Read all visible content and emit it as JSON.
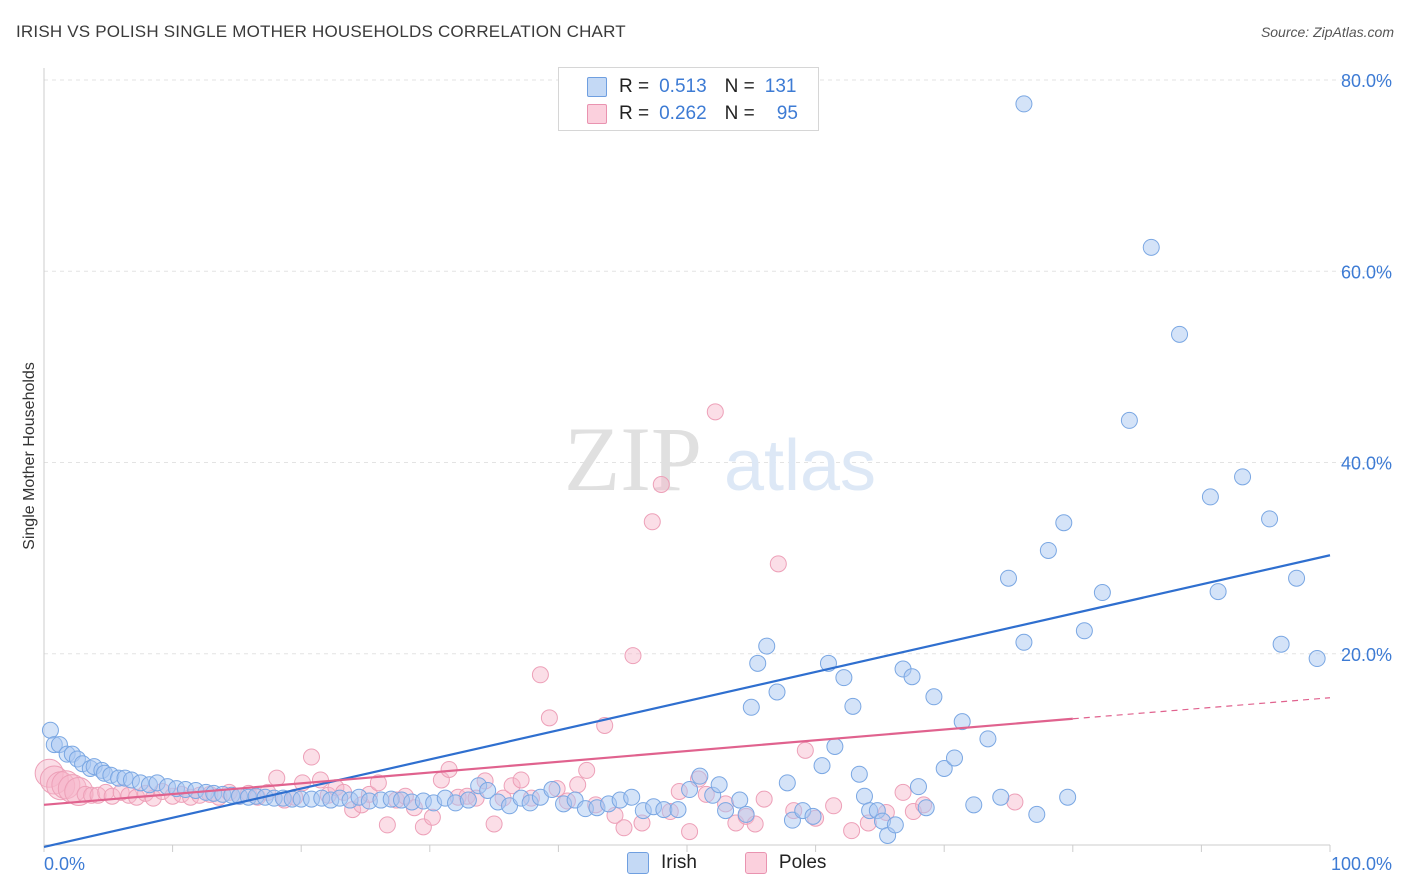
{
  "title": "IRISH VS POLISH SINGLE MOTHER HOUSEHOLDS CORRELATION CHART",
  "source": "Source: ZipAtlas.com",
  "watermark": {
    "zip": "ZIP",
    "atlas": "atlas"
  },
  "legend": {
    "rows": [
      {
        "r_label": "R =",
        "r_value": "0.513",
        "n_label": "N =",
        "n_value": "131",
        "color": "#a9c8f1"
      },
      {
        "r_label": "R =",
        "r_value": "0.262",
        "n_label": "N =",
        "n_value": "95",
        "color": "#f7b6c9"
      }
    ],
    "bottom": [
      {
        "label": "Irish",
        "color": "#a9c8f1"
      },
      {
        "label": "Poles",
        "color": "#f7b6c9"
      }
    ]
  },
  "chart_data": {
    "type": "scatter",
    "title": "IRISH VS POLISH SINGLE MOTHER HOUSEHOLDS CORRELATION CHART",
    "xlabel": "",
    "ylabel": "Single Mother Households",
    "xlim": [
      0,
      100
    ],
    "ylim": [
      0,
      80
    ],
    "x_tick_labels": [
      "0.0%",
      "100.0%"
    ],
    "y_ticks": [
      20,
      40,
      60,
      80
    ],
    "y_tick_labels": [
      "20.0%",
      "40.0%",
      "60.0%",
      "80.0%"
    ],
    "grid": true,
    "colors": {
      "irish": "#a9c8f1",
      "irish_line": "#2f6fcf",
      "poles": "#f7b6c9",
      "poles_line": "#e0628e",
      "tick_text": "#3d7bd4"
    },
    "series": [
      {
        "name": "Irish",
        "r": 0.513,
        "n": 131,
        "trend": {
          "x0": 0,
          "y0": -0.2,
          "x1": 100,
          "y1": 30.3
        },
        "points": [
          [
            0.5,
            12
          ],
          [
            0.8,
            10.5
          ],
          [
            1.2,
            10.5
          ],
          [
            1.8,
            9.5
          ],
          [
            2.2,
            9.5
          ],
          [
            2.6,
            9
          ],
          [
            3.0,
            8.5
          ],
          [
            3.6,
            8
          ],
          [
            3.9,
            8.2
          ],
          [
            4.5,
            7.8
          ],
          [
            4.7,
            7.5
          ],
          [
            5.2,
            7.3
          ],
          [
            5.8,
            7
          ],
          [
            6.3,
            7
          ],
          [
            6.8,
            6.8
          ],
          [
            7.5,
            6.5
          ],
          [
            8.2,
            6.3
          ],
          [
            8.8,
            6.5
          ],
          [
            9.6,
            6.1
          ],
          [
            10.3,
            5.9
          ],
          [
            11,
            5.8
          ],
          [
            11.8,
            5.7
          ],
          [
            12.6,
            5.5
          ],
          [
            13.2,
            5.4
          ],
          [
            13.9,
            5.3
          ],
          [
            14.6,
            5.2
          ],
          [
            15.2,
            5.1
          ],
          [
            15.9,
            5.0
          ],
          [
            16.5,
            5.1
          ],
          [
            17.2,
            5.0
          ],
          [
            17.9,
            4.9
          ],
          [
            18.6,
            4.9
          ],
          [
            19.3,
            4.8
          ],
          [
            20,
            4.8
          ],
          [
            20.8,
            4.8
          ],
          [
            21.6,
            4.9
          ],
          [
            22.3,
            4.7
          ],
          [
            23,
            4.9
          ],
          [
            23.8,
            4.7
          ],
          [
            24.5,
            5.0
          ],
          [
            25.3,
            4.6
          ],
          [
            26.2,
            4.7
          ],
          [
            27.0,
            4.8
          ],
          [
            27.8,
            4.7
          ],
          [
            28.6,
            4.5
          ],
          [
            29.5,
            4.6
          ],
          [
            30.3,
            4.4
          ],
          [
            31.2,
            4.9
          ],
          [
            32.0,
            4.4
          ],
          [
            33.0,
            4.7
          ],
          [
            33.8,
            6.2
          ],
          [
            34.5,
            5.7
          ],
          [
            35.3,
            4.5
          ],
          [
            36.2,
            4.1
          ],
          [
            37.1,
            4.9
          ],
          [
            37.8,
            4.4
          ],
          [
            38.6,
            5.0
          ],
          [
            39.5,
            5.8
          ],
          [
            40.4,
            4.3
          ],
          [
            41.3,
            4.7
          ],
          [
            42.1,
            3.8
          ],
          [
            43.0,
            3.9
          ],
          [
            43.9,
            4.3
          ],
          [
            44.8,
            4.7
          ],
          [
            45.7,
            5.0
          ],
          [
            46.6,
            3.6
          ],
          [
            47.4,
            4.0
          ],
          [
            48.2,
            3.7
          ],
          [
            49.3,
            3.7
          ],
          [
            50.2,
            5.8
          ],
          [
            51.0,
            7.2
          ],
          [
            52.0,
            5.2
          ],
          [
            52.5,
            6.3
          ],
          [
            53.0,
            3.6
          ],
          [
            54.1,
            4.7
          ],
          [
            54.6,
            3.2
          ],
          [
            55.0,
            14.4
          ],
          [
            55.5,
            19.0
          ],
          [
            56.2,
            20.8
          ],
          [
            57.0,
            16.0
          ],
          [
            57.8,
            6.5
          ],
          [
            58.2,
            2.6
          ],
          [
            59.0,
            3.6
          ],
          [
            59.8,
            3.0
          ],
          [
            60.5,
            8.3
          ],
          [
            61.0,
            19.0
          ],
          [
            61.5,
            10.3
          ],
          [
            62.2,
            17.5
          ],
          [
            62.9,
            14.5
          ],
          [
            63.4,
            7.4
          ],
          [
            63.8,
            5.1
          ],
          [
            64.2,
            3.6
          ],
          [
            64.8,
            3.6
          ],
          [
            65.2,
            2.5
          ],
          [
            65.6,
            1.0
          ],
          [
            66.2,
            2.1
          ],
          [
            66.8,
            18.4
          ],
          [
            67.5,
            17.6
          ],
          [
            68.0,
            6.1
          ],
          [
            68.6,
            3.9
          ],
          [
            69.2,
            15.5
          ],
          [
            70.0,
            8.0
          ],
          [
            70.8,
            9.1
          ],
          [
            71.4,
            12.9
          ],
          [
            72.3,
            4.2
          ],
          [
            73.4,
            11.1
          ],
          [
            74.4,
            5.0
          ],
          [
            75.0,
            27.9
          ],
          [
            76.2,
            21.2
          ],
          [
            77.2,
            3.2
          ],
          [
            78.1,
            30.8
          ],
          [
            79.3,
            33.7
          ],
          [
            80.9,
            22.4
          ],
          [
            82.3,
            26.4
          ],
          [
            84.4,
            44.4
          ],
          [
            86.1,
            62.5
          ],
          [
            88.3,
            53.4
          ],
          [
            90.7,
            36.4
          ],
          [
            93.2,
            38.5
          ],
          [
            95.3,
            34.1
          ],
          [
            96.2,
            21.0
          ],
          [
            97.4,
            27.9
          ],
          [
            99.0,
            19.5
          ],
          [
            91.3,
            26.5
          ],
          [
            79.6,
            5.0
          ],
          [
            76.2,
            77.5
          ]
        ]
      },
      {
        "name": "Poles",
        "r": 0.262,
        "n": 95,
        "trend": {
          "x0": 0,
          "y0": 4.2,
          "x1": 80,
          "y1": 13.2
        },
        "trend_extension": {
          "x0": 80,
          "y0": 13.2,
          "x1": 100,
          "y1": 15.4
        },
        "points": [
          [
            0.4,
            7.5
          ],
          [
            0.8,
            6.8
          ],
          [
            1.3,
            6.2
          ],
          [
            1.7,
            6.3
          ],
          [
            2.2,
            5.9
          ],
          [
            2.7,
            5.6
          ],
          [
            3.2,
            5.3
          ],
          [
            3.7,
            5.2
          ],
          [
            4.2,
            5.2
          ],
          [
            4.8,
            5.5
          ],
          [
            5.3,
            5.1
          ],
          [
            6.0,
            5.5
          ],
          [
            6.6,
            5.2
          ],
          [
            7.2,
            5.0
          ],
          [
            7.9,
            5.4
          ],
          [
            8.5,
            4.9
          ],
          [
            9.2,
            5.6
          ],
          [
            10.0,
            5.1
          ],
          [
            10.7,
            5.3
          ],
          [
            11.4,
            5.0
          ],
          [
            12.1,
            5.2
          ],
          [
            12.9,
            5.3
          ],
          [
            13.6,
            5.0
          ],
          [
            14.4,
            5.5
          ],
          [
            15.2,
            5.1
          ],
          [
            15.9,
            5.4
          ],
          [
            16.6,
            5.0
          ],
          [
            17.4,
            5.5
          ],
          [
            18.1,
            7.0
          ],
          [
            18.7,
            4.7
          ],
          [
            19.5,
            5.0
          ],
          [
            20.1,
            6.5
          ],
          [
            20.8,
            9.2
          ],
          [
            21.5,
            6.8
          ],
          [
            22.1,
            5.2
          ],
          [
            22.7,
            6.0
          ],
          [
            23.3,
            5.5
          ],
          [
            24.0,
            3.7
          ],
          [
            24.7,
            4.2
          ],
          [
            25.3,
            5.3
          ],
          [
            26.0,
            6.5
          ],
          [
            26.7,
            2.1
          ],
          [
            27.4,
            4.7
          ],
          [
            28.1,
            5.1
          ],
          [
            28.8,
            3.9
          ],
          [
            29.5,
            1.9
          ],
          [
            30.2,
            2.9
          ],
          [
            30.9,
            6.8
          ],
          [
            31.5,
            7.9
          ],
          [
            32.2,
            5.0
          ],
          [
            32.9,
            5.1
          ],
          [
            33.6,
            4.9
          ],
          [
            34.3,
            6.7
          ],
          [
            35.0,
            2.2
          ],
          [
            35.7,
            4.9
          ],
          [
            36.4,
            6.2
          ],
          [
            37.1,
            6.8
          ],
          [
            37.9,
            4.9
          ],
          [
            38.6,
            17.8
          ],
          [
            39.3,
            13.3
          ],
          [
            39.9,
            5.9
          ],
          [
            40.7,
            4.6
          ],
          [
            41.5,
            6.3
          ],
          [
            42.2,
            7.8
          ],
          [
            42.9,
            4.2
          ],
          [
            43.6,
            12.5
          ],
          [
            44.4,
            3.1
          ],
          [
            45.1,
            1.8
          ],
          [
            45.8,
            19.8
          ],
          [
            46.5,
            2.3
          ],
          [
            47.3,
            33.8
          ],
          [
            48.0,
            37.7
          ],
          [
            48.7,
            3.5
          ],
          [
            49.4,
            5.6
          ],
          [
            50.2,
            1.4
          ],
          [
            50.9,
            6.9
          ],
          [
            51.5,
            5.3
          ],
          [
            52.2,
            45.3
          ],
          [
            53.0,
            4.3
          ],
          [
            53.8,
            2.3
          ],
          [
            54.6,
            3.0
          ],
          [
            55.3,
            2.2
          ],
          [
            56.0,
            4.8
          ],
          [
            57.1,
            29.4
          ],
          [
            58.3,
            3.6
          ],
          [
            59.2,
            9.9
          ],
          [
            60.0,
            2.8
          ],
          [
            61.4,
            4.1
          ],
          [
            62.8,
            1.5
          ],
          [
            64.1,
            2.3
          ],
          [
            65.5,
            3.4
          ],
          [
            66.8,
            5.5
          ],
          [
            67.6,
            3.5
          ],
          [
            68.4,
            4.2
          ],
          [
            75.5,
            4.5
          ]
        ]
      }
    ]
  }
}
